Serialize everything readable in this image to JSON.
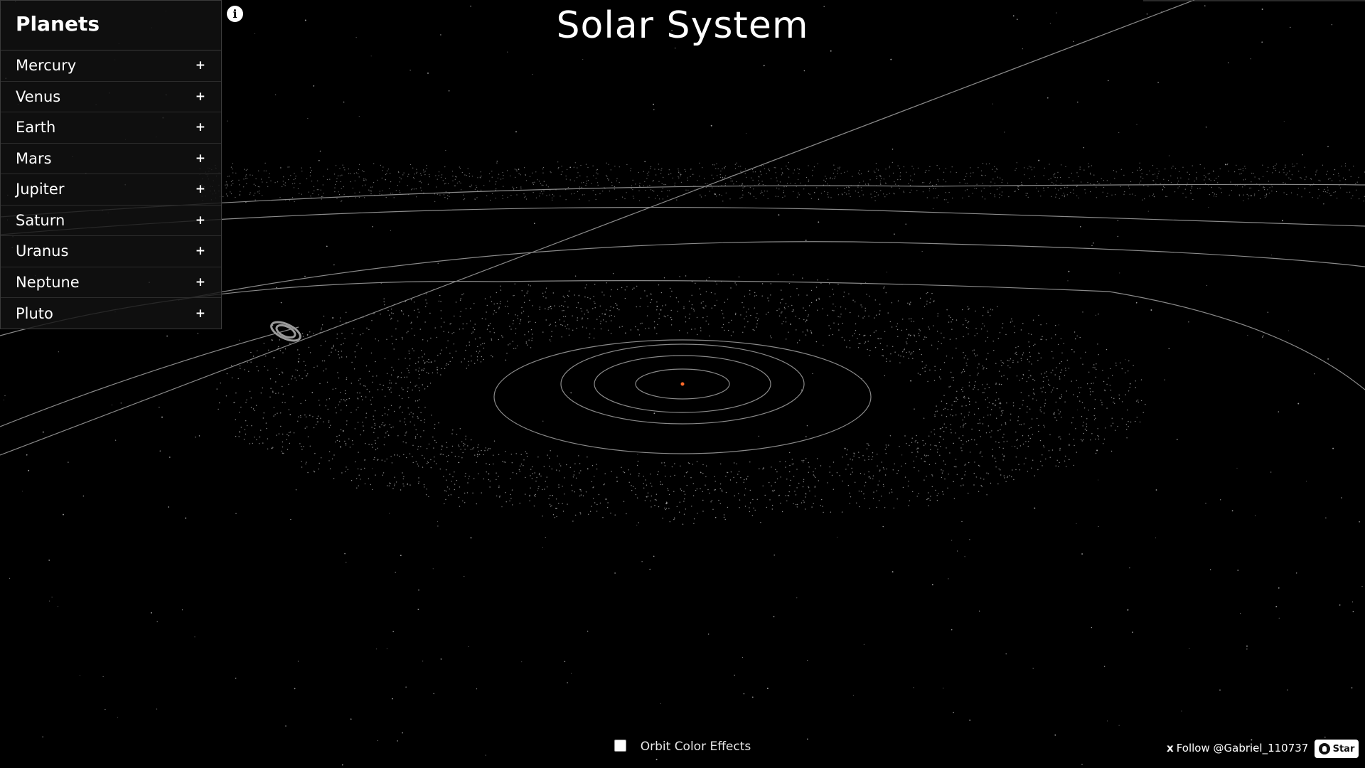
{
  "header": {
    "title": "Solar System"
  },
  "panel": {
    "heading": "Planets",
    "items": [
      {
        "label": "Mercury",
        "expand": "+"
      },
      {
        "label": "Venus",
        "expand": "+"
      },
      {
        "label": "Earth",
        "expand": "+"
      },
      {
        "label": "Mars",
        "expand": "+"
      },
      {
        "label": "Jupiter",
        "expand": "+"
      },
      {
        "label": "Saturn",
        "expand": "+"
      },
      {
        "label": "Uranus",
        "expand": "+"
      },
      {
        "label": "Neptune",
        "expand": "+"
      },
      {
        "label": "Pluto",
        "expand": "+"
      }
    ]
  },
  "info_icon": {
    "glyph": "i",
    "icon": "info-icon"
  },
  "controls": {
    "orbit_color_label": "Orbit Color Effects",
    "orbit_color_checked": false
  },
  "footer": {
    "follow_icon": "x",
    "follow_text": "Follow @Gabriel_110737",
    "star_label": "Star",
    "star_icon": "github-icon"
  },
  "colors": {
    "background": "#000000",
    "sun": "#ff6a2a",
    "orbit_line": "#8a8a8a",
    "panel_bg": "#121212"
  }
}
